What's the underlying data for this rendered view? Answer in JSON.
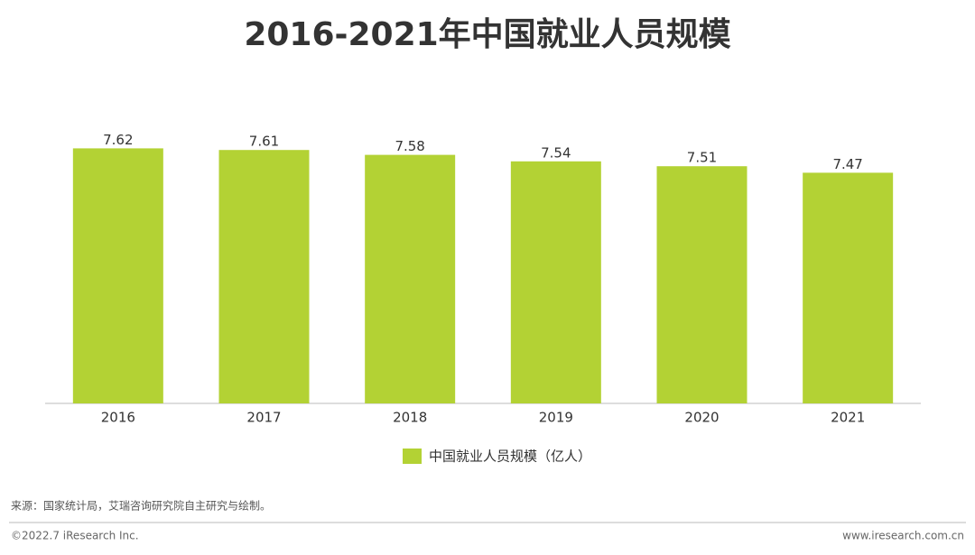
{
  "chart_data": {
    "type": "bar",
    "title": "2016-2021年中国就业人员规模",
    "categories": [
      "2016",
      "2017",
      "2018",
      "2019",
      "2020",
      "2021"
    ],
    "series": [
      {
        "name": "中国就业人员规模（亿人）",
        "color": "#b3d234",
        "values": [
          7.62,
          7.61,
          7.58,
          7.54,
          7.51,
          7.47
        ]
      }
    ],
    "ylim": [
      6.05,
      7.72
    ],
    "legend": "bottom"
  },
  "source": "来源：国家统计局，艾瑞咨询研究院自主研究与绘制。",
  "footer": {
    "copyright": "©2022.7 iResearch Inc.",
    "website": "www.iresearch.com.cn"
  }
}
